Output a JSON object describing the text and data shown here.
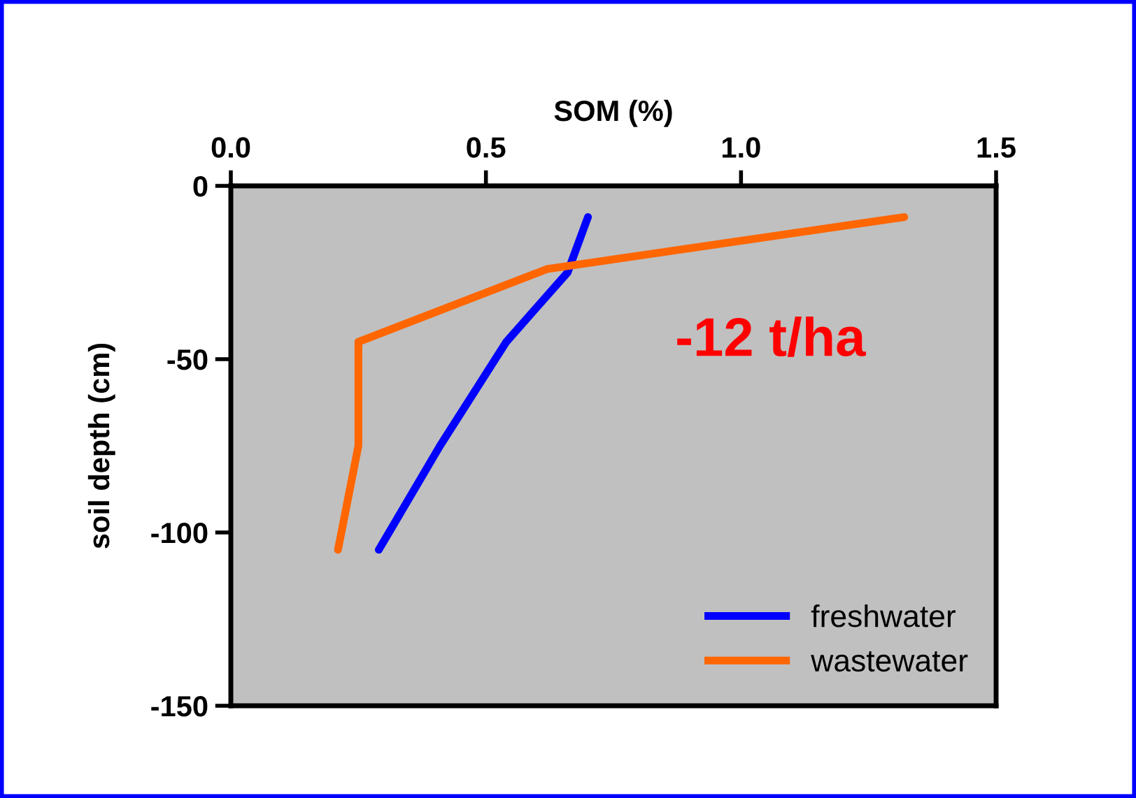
{
  "chart_data": {
    "type": "line",
    "xlabel": "SOM (%)",
    "ylabel": "soil depth (cm)",
    "xlim": [
      0,
      1.5
    ],
    "xticks": [
      {
        "value": 0,
        "label": "0.0"
      },
      0.5,
      {
        "value": 1,
        "label": "1.0"
      },
      1.5
    ],
    "ylim": [
      -150,
      0
    ],
    "yticks": [
      {
        "value": -150,
        "label": "-150"
      },
      {
        "value": -100,
        "label": "-100"
      },
      {
        "value": -50,
        "label": "-50"
      },
      0
    ],
    "series": [
      {
        "name": "freshwater",
        "color": "#0000ff",
        "x": [
          0.7,
          0.66,
          0.54,
          0.41,
          0.29
        ],
        "values": [
          -9,
          -25,
          -45,
          -75,
          -105
        ]
      },
      {
        "name": "wastewater",
        "color": "#ff6600",
        "x": [
          1.32,
          0.62,
          0.25,
          0.25,
          0.21
        ],
        "values": [
          -9,
          -24,
          -45,
          -75,
          -105
        ]
      }
    ],
    "annotations": [
      "-12 t/ha"
    ],
    "grid": false,
    "legend": "bottom right",
    "marker": "none",
    "line_style": "solid"
  }
}
